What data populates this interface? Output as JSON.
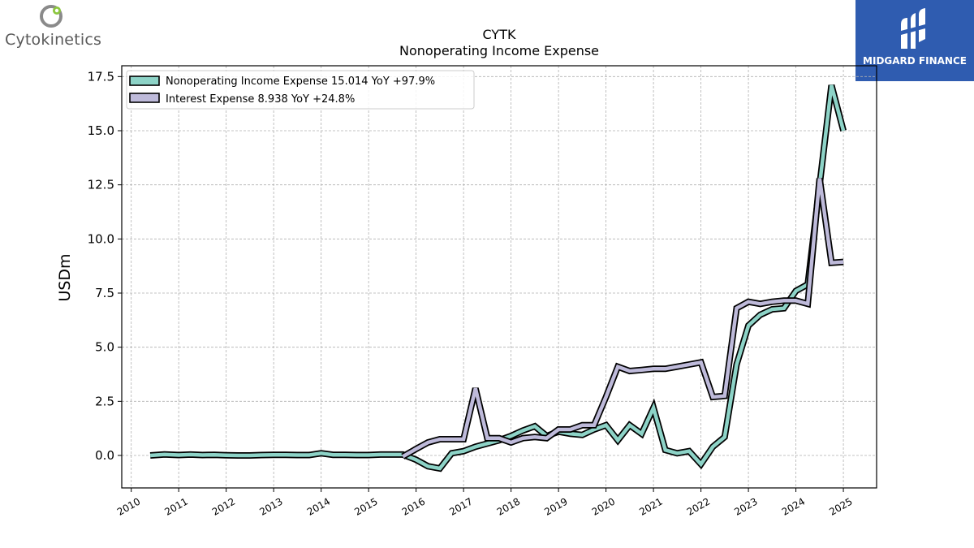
{
  "header": {
    "company_logo_text": "Cytokinetics",
    "brand_badge_text": "MIDGARD FINANCE"
  },
  "colors": {
    "nonoperating": "#8dd3c7",
    "interest": "#bebada",
    "outline": "#000000",
    "brand_badge": "#2f5cb0",
    "logo_green": "#8cc63f"
  },
  "chart_data": {
    "type": "line",
    "title": "CYTK",
    "subtitle": "Nonoperating Income Expense",
    "ylabel": "USDm",
    "xlabel": "",
    "ylim": [
      -1.5,
      18.0
    ],
    "xlim": [
      2009.8,
      2025.7
    ],
    "yticks": [
      0.0,
      2.5,
      5.0,
      7.5,
      10.0,
      12.5,
      15.0,
      17.5
    ],
    "ytick_labels": [
      "0.0",
      "2.5",
      "5.0",
      "7.5",
      "10.0",
      "12.5",
      "15.0",
      "17.5"
    ],
    "xticks": [
      2010,
      2011,
      2012,
      2013,
      2014,
      2015,
      2016,
      2017,
      2018,
      2019,
      2020,
      2021,
      2022,
      2023,
      2024,
      2025
    ],
    "xtick_labels": [
      "2010",
      "2011",
      "2012",
      "2013",
      "2014",
      "2015",
      "2016",
      "2017",
      "2018",
      "2019",
      "2020",
      "2021",
      "2022",
      "2023",
      "2024",
      "2025"
    ],
    "grid": true,
    "legend_position": "top-left",
    "series": [
      {
        "name": "Nonoperating Income Expense",
        "legend_label": "Nonoperating Income Expense  15.014 YoY +97.9%",
        "color_key": "nonoperating",
        "x": [
          2010.4,
          2010.7,
          2011.0,
          2011.25,
          2011.5,
          2011.75,
          2012.0,
          2012.25,
          2012.5,
          2012.75,
          2013.0,
          2013.25,
          2013.5,
          2013.75,
          2014.0,
          2014.25,
          2014.5,
          2014.75,
          2015.0,
          2015.25,
          2015.5,
          2015.72,
          2016.0,
          2016.25,
          2016.5,
          2016.75,
          2017.0,
          2017.25,
          2017.5,
          2017.75,
          2018.0,
          2018.25,
          2018.5,
          2018.75,
          2019.0,
          2019.25,
          2019.5,
          2019.75,
          2020.0,
          2020.25,
          2020.5,
          2020.75,
          2021.0,
          2021.25,
          2021.5,
          2021.75,
          2022.0,
          2022.25,
          2022.5,
          2022.75,
          2023.0,
          2023.25,
          2023.5,
          2023.75,
          2024.0,
          2024.25,
          2024.5,
          2024.75,
          2025.0
        ],
        "y": [
          0.0,
          0.05,
          0.02,
          0.04,
          0.02,
          0.03,
          0.01,
          0.0,
          0.0,
          0.02,
          0.03,
          0.03,
          0.02,
          0.02,
          0.1,
          0.03,
          0.03,
          0.02,
          0.02,
          0.04,
          0.04,
          0.04,
          -0.2,
          -0.5,
          -0.6,
          0.1,
          0.2,
          0.4,
          0.55,
          0.7,
          0.9,
          1.15,
          1.35,
          0.9,
          1.1,
          1.0,
          0.95,
          1.2,
          1.4,
          0.7,
          1.4,
          1.0,
          2.2,
          0.25,
          0.1,
          0.2,
          -0.4,
          0.4,
          0.85,
          4.2,
          6.0,
          6.5,
          6.75,
          6.8,
          7.6,
          7.9,
          12.5,
          17.1,
          15.0
        ]
      },
      {
        "name": "Interest Expense",
        "legend_label": "Interest Expense  8.938 YoY +24.8%",
        "color_key": "interest",
        "x": [
          2015.72,
          2016.0,
          2016.25,
          2016.5,
          2016.75,
          2017.0,
          2017.25,
          2017.5,
          2017.75,
          2018.0,
          2018.25,
          2018.5,
          2018.75,
          2019.0,
          2019.25,
          2019.5,
          2019.75,
          2020.0,
          2020.25,
          2020.5,
          2020.75,
          2021.0,
          2021.25,
          2021.5,
          2021.75,
          2022.0,
          2022.25,
          2022.5,
          2022.75,
          2023.0,
          2023.25,
          2023.5,
          2023.75,
          2024.0,
          2024.25,
          2024.5,
          2024.75,
          2025.0
        ],
        "y": [
          -0.05,
          0.3,
          0.6,
          0.75,
          0.75,
          0.75,
          3.1,
          0.8,
          0.8,
          0.6,
          0.8,
          0.85,
          0.8,
          1.2,
          1.2,
          1.4,
          1.4,
          2.7,
          4.1,
          3.9,
          3.95,
          4.0,
          4.0,
          4.1,
          4.2,
          4.3,
          2.7,
          2.75,
          6.8,
          7.1,
          7.0,
          7.1,
          7.15,
          7.15,
          7.0,
          12.8,
          8.9,
          8.94
        ]
      }
    ]
  }
}
